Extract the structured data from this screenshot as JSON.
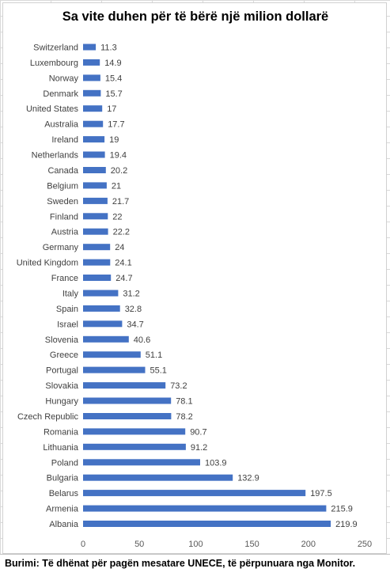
{
  "chart_data": {
    "type": "bar",
    "orientation": "horizontal",
    "title": "Sa vite duhen për të bërë një milion dollarë",
    "categories": [
      "Switzerland",
      "Luxembourg",
      "Norway",
      "Denmark",
      "United States",
      "Australia",
      "Ireland",
      "Netherlands",
      "Canada",
      "Belgium",
      "Sweden",
      "Finland",
      "Austria",
      "Germany",
      "United Kingdom",
      "France",
      "Italy",
      "Spain",
      "Israel",
      "Slovenia",
      "Greece",
      "Portugal",
      "Slovakia",
      "Hungary",
      "Czech Republic",
      "Romania",
      "Lithuania",
      "Poland",
      "Bulgaria",
      "Belarus",
      "Armenia",
      "Albania"
    ],
    "values": [
      11.3,
      14.9,
      15.4,
      15.7,
      17,
      17.7,
      19,
      19.4,
      20.2,
      21,
      21.7,
      22,
      22.2,
      24,
      24.1,
      24.7,
      31.2,
      32.8,
      34.7,
      40.6,
      51.1,
      55.1,
      73.2,
      78.1,
      78.2,
      90.7,
      91.2,
      103.9,
      132.9,
      197.5,
      215.9,
      219.9
    ],
    "value_labels": [
      "11.3",
      "14.9",
      "15.4",
      "15.7",
      "17",
      "17.7",
      "19",
      "19.4",
      "20.2",
      "21",
      "21.7",
      "22",
      "22.2",
      "24",
      "24.1",
      "24.7",
      "31.2",
      "32.8",
      "34.7",
      "40.6",
      "51.1",
      "55.1",
      "73.2",
      "78.1",
      "78.2",
      "90.7",
      "91.2",
      "103.9",
      "132.9",
      "197.5",
      "215.9",
      "219.9"
    ],
    "xlim": [
      0,
      250
    ],
    "xticks": [
      0,
      50,
      100,
      150,
      200,
      250
    ],
    "grid": false,
    "bar_color": "#4472c4",
    "legend": "none"
  },
  "source_note": "Burimi: Të dhënat për pagën mesatare UNECE, të përpunuara nga Monitor."
}
